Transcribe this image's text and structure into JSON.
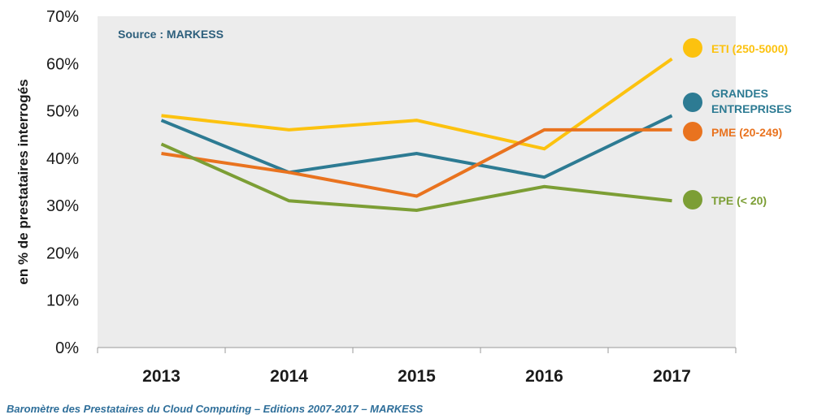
{
  "chart_data": {
    "type": "line",
    "ylabel": "en % de prestataires interrogés",
    "ylim": [
      0,
      70
    ],
    "yticks": [
      "0%",
      "10%",
      "20%",
      "30%",
      "40%",
      "50%",
      "60%",
      "70%"
    ],
    "categories": [
      "2013",
      "2014",
      "2015",
      "2016",
      "2017"
    ],
    "source": "Source : MARKESS",
    "grid": false,
    "legend_position": "right",
    "series": [
      {
        "name": "ETI (250-5000)",
        "label_lines": [
          "ETI (250-5000)"
        ],
        "color": "#fcc20f",
        "values": [
          49,
          46,
          48,
          42,
          61
        ]
      },
      {
        "name": "GRANDES ENTREPRISES",
        "label_lines": [
          "GRANDES",
          "ENTREPRISES"
        ],
        "color": "#2d7b93",
        "values": [
          48,
          37,
          41,
          36,
          49
        ]
      },
      {
        "name": "PME (20-249)",
        "label_lines": [
          "PME (20-249)"
        ],
        "color": "#e9731f",
        "values": [
          41,
          37,
          32,
          46,
          46
        ]
      },
      {
        "name": "TPE (< 20)",
        "label_lines": [
          "TPE (< 20)"
        ],
        "color": "#7c9e35",
        "values": [
          43,
          31,
          29,
          34,
          31
        ]
      }
    ]
  },
  "footer": "Baromètre des Prestataires du Cloud Computing – Editions 2007-2017 – MARKESS"
}
